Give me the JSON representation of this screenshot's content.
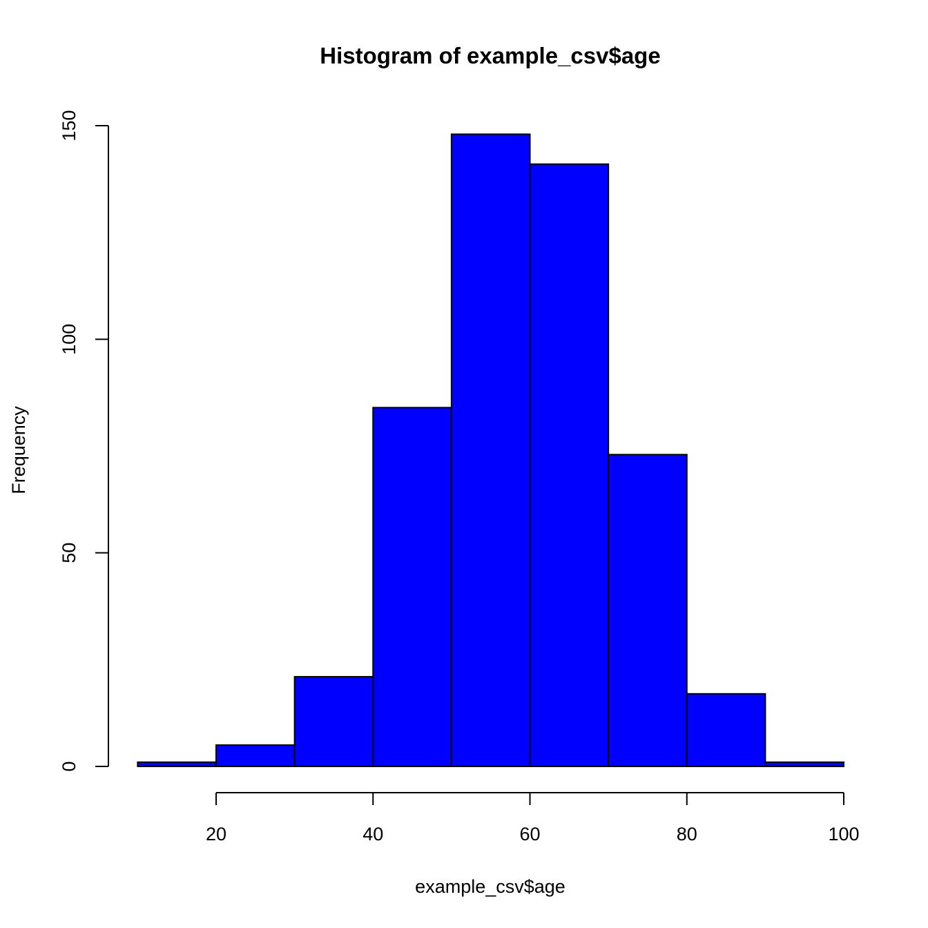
{
  "chart_data": {
    "type": "bar",
    "title": "Histogram of example_csv$age",
    "xlabel": "example_csv$age",
    "ylabel": "Frequency",
    "bins": [
      {
        "from": 10,
        "to": 20,
        "count": 1
      },
      {
        "from": 20,
        "to": 30,
        "count": 5
      },
      {
        "from": 30,
        "to": 40,
        "count": 21
      },
      {
        "from": 40,
        "to": 50,
        "count": 84
      },
      {
        "from": 50,
        "to": 60,
        "count": 148
      },
      {
        "from": 60,
        "to": 70,
        "count": 141
      },
      {
        "from": 70,
        "to": 80,
        "count": 73
      },
      {
        "from": 80,
        "to": 90,
        "count": 17
      },
      {
        "from": 90,
        "to": 100,
        "count": 1
      }
    ],
    "x_ticks": [
      20,
      40,
      60,
      80,
      100
    ],
    "y_ticks": [
      0,
      50,
      100,
      150
    ],
    "xlim": [
      10,
      100
    ],
    "ylim": [
      0,
      150
    ],
    "bar_color": "#0000ff",
    "edge_color": "#000000",
    "grid": false,
    "legend": "none"
  }
}
